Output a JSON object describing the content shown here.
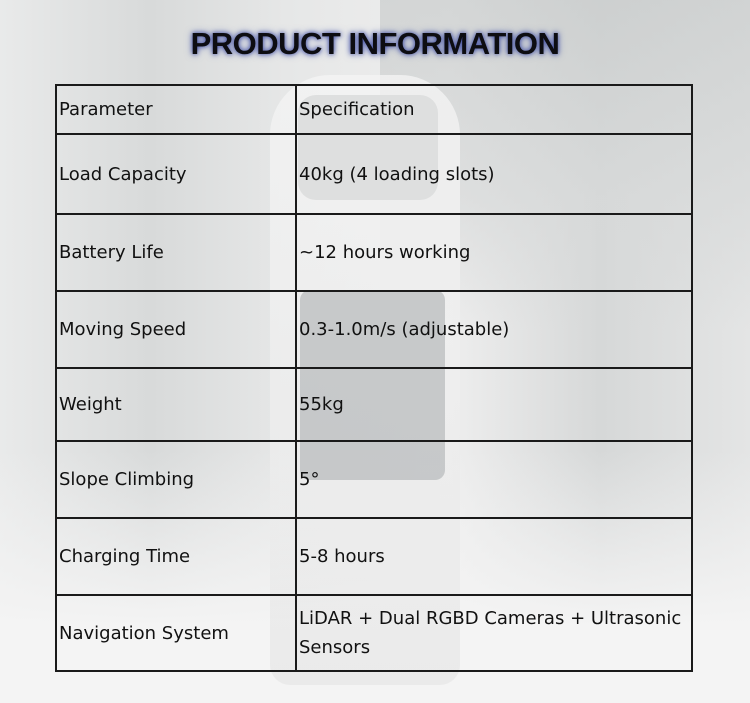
{
  "title": "PRODUCT INFORMATION",
  "table": {
    "headers": [
      "Parameter",
      "Specification"
    ],
    "rows": [
      [
        "Load Capacity",
        "40kg (4 loading slots)"
      ],
      [
        "Battery Life",
        "~12 hours working"
      ],
      [
        "Moving Speed",
        "0.3-1.0m/s (adjustable)"
      ],
      [
        "Weight",
        "55kg"
      ],
      [
        "Slope Climbing",
        "5°"
      ],
      [
        "Charging Time",
        "5-8 hours"
      ],
      [
        "Navigation System",
        "LiDAR + Dual RGBD Cameras + Ultrasonic Sensors"
      ]
    ]
  }
}
